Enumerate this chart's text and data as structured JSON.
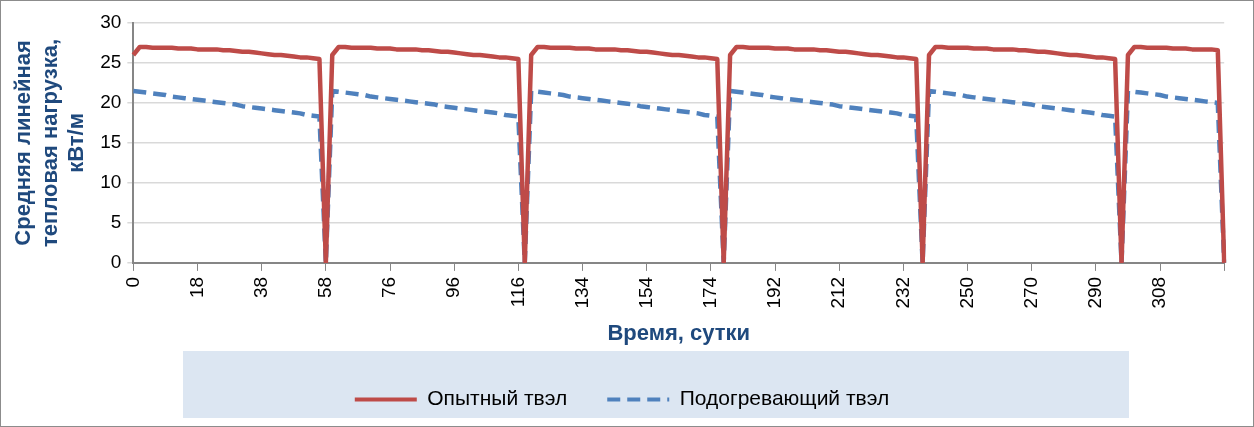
{
  "chart_data": {
    "type": "line",
    "xlabel": "Время, сутки",
    "ylabel": "Средняя линейная тепловая нагрузка, кВт/м",
    "categories": [
      "0",
      null,
      null,
      null,
      null,
      null,
      null,
      null,
      null,
      null,
      "18",
      null,
      null,
      null,
      null,
      null,
      null,
      null,
      null,
      null,
      "38",
      null,
      null,
      null,
      null,
      null,
      null,
      null,
      null,
      null,
      "58",
      null,
      null,
      null,
      null,
      null,
      null,
      null,
      null,
      null,
      "76",
      null,
      null,
      null,
      null,
      null,
      null,
      null,
      null,
      null,
      "96",
      null,
      null,
      null,
      null,
      null,
      null,
      null,
      null,
      null,
      "116",
      null,
      null,
      null,
      null,
      null,
      null,
      null,
      null,
      null,
      "134",
      null,
      null,
      null,
      null,
      null,
      null,
      null,
      null,
      null,
      "154",
      null,
      null,
      null,
      null,
      null,
      null,
      null,
      null,
      null,
      "174",
      null,
      null,
      null,
      null,
      null,
      null,
      null,
      null,
      null,
      "192",
      null,
      null,
      null,
      null,
      null,
      null,
      null,
      null,
      null,
      "212",
      null,
      null,
      null,
      null,
      null,
      null,
      null,
      null,
      null,
      "232",
      null,
      null,
      null,
      null,
      null,
      null,
      null,
      null,
      null,
      "250",
      null,
      null,
      null,
      null,
      null,
      null,
      null,
      null,
      null,
      "270",
      null,
      null,
      null,
      null,
      null,
      null,
      null,
      null,
      null,
      "290",
      null,
      null,
      null,
      null,
      null,
      null,
      null,
      null,
      null,
      "308",
      null,
      null,
      null,
      null,
      null,
      null,
      null,
      null,
      null,
      null
    ],
    "series": [
      {
        "name": "Опытный твэл",
        "color": "#be4b48",
        "line_style": "solid",
        "values": [
          26,
          27,
          27,
          26.9,
          26.9,
          26.9,
          26.9,
          26.8,
          26.8,
          26.8,
          26.7,
          26.7,
          26.7,
          26.7,
          26.6,
          26.6,
          26.5,
          26.4,
          26.4,
          26.3,
          26.2,
          26.1,
          26,
          26,
          25.9,
          25.8,
          25.7,
          25.7,
          25.6,
          25.5,
          0,
          26,
          27,
          27,
          26.9,
          26.9,
          26.9,
          26.9,
          26.8,
          26.8,
          26.8,
          26.7,
          26.7,
          26.7,
          26.7,
          26.6,
          26.6,
          26.5,
          26.4,
          26.4,
          26.3,
          26.2,
          26.1,
          26,
          26,
          25.9,
          25.8,
          25.7,
          25.7,
          25.6,
          25.5,
          0,
          26,
          27,
          27,
          26.9,
          26.9,
          26.9,
          26.9,
          26.8,
          26.8,
          26.8,
          26.7,
          26.7,
          26.7,
          26.7,
          26.6,
          26.6,
          26.5,
          26.4,
          26.4,
          26.3,
          26.2,
          26.1,
          26,
          26,
          25.9,
          25.8,
          25.7,
          25.7,
          25.6,
          25.5,
          0,
          26,
          27,
          27,
          26.9,
          26.9,
          26.9,
          26.9,
          26.8,
          26.8,
          26.8,
          26.7,
          26.7,
          26.7,
          26.7,
          26.6,
          26.6,
          26.5,
          26.4,
          26.4,
          26.3,
          26.2,
          26.1,
          26,
          26,
          25.9,
          25.8,
          25.7,
          25.7,
          25.6,
          25.5,
          0,
          26,
          27,
          27,
          26.9,
          26.9,
          26.9,
          26.9,
          26.8,
          26.8,
          26.8,
          26.7,
          26.7,
          26.7,
          26.7,
          26.6,
          26.6,
          26.5,
          26.4,
          26.4,
          26.3,
          26.2,
          26.1,
          26,
          26,
          25.9,
          25.8,
          25.7,
          25.7,
          25.6,
          25.5,
          0,
          26,
          27,
          27,
          26.9,
          26.9,
          26.9,
          26.9,
          26.8,
          26.8,
          26.8,
          26.7,
          26.7,
          26.7,
          26.7,
          26.6,
          0
        ]
      },
      {
        "name": "Подогревающий твэл",
        "color": "#4f81bd",
        "line_style": "dashed",
        "values": [
          21.5,
          21.4,
          21.3,
          21.2,
          21.1,
          21,
          20.8,
          20.7,
          20.6,
          20.5,
          20.4,
          20.3,
          20.2,
          20.1,
          20,
          19.9,
          19.8,
          19.6,
          19.5,
          19.4,
          19.3,
          19.2,
          19.1,
          19,
          18.9,
          18.8,
          18.7,
          18.5,
          18.4,
          18.3,
          0,
          21.5,
          21.4,
          21.3,
          21.2,
          21.1,
          21,
          20.8,
          20.7,
          20.6,
          20.5,
          20.4,
          20.3,
          20.2,
          20.1,
          20,
          19.9,
          19.8,
          19.6,
          19.5,
          19.4,
          19.3,
          19.2,
          19.1,
          19,
          18.9,
          18.8,
          18.7,
          18.5,
          18.4,
          18.3,
          0,
          21.5,
          21.4,
          21.3,
          21.2,
          21.1,
          21,
          20.8,
          20.7,
          20.6,
          20.5,
          20.4,
          20.3,
          20.2,
          20.1,
          20,
          19.9,
          19.8,
          19.6,
          19.5,
          19.4,
          19.3,
          19.2,
          19.1,
          19,
          18.9,
          18.8,
          18.7,
          18.5,
          18.4,
          18.3,
          0,
          21.5,
          21.4,
          21.3,
          21.2,
          21.1,
          21,
          20.8,
          20.7,
          20.6,
          20.5,
          20.4,
          20.3,
          20.2,
          20.1,
          20,
          19.9,
          19.8,
          19.6,
          19.5,
          19.4,
          19.3,
          19.2,
          19.1,
          19,
          18.9,
          18.8,
          18.7,
          18.5,
          18.4,
          18.3,
          0,
          21.5,
          21.4,
          21.3,
          21.2,
          21.1,
          21,
          20.8,
          20.7,
          20.6,
          20.5,
          20.4,
          20.3,
          20.2,
          20.1,
          20,
          19.9,
          19.8,
          19.6,
          19.5,
          19.4,
          19.3,
          19.2,
          19.1,
          19,
          18.9,
          18.8,
          18.7,
          18.5,
          18.4,
          18.3,
          0,
          21.5,
          21.4,
          21.3,
          21.2,
          21.1,
          21,
          20.8,
          20.7,
          20.6,
          20.5,
          20.4,
          20.3,
          20.2,
          20.1,
          20,
          0
        ]
      }
    ],
    "ylim": [
      0,
      30
    ],
    "yticks": [
      0,
      5,
      10,
      15,
      20,
      25,
      30
    ],
    "grid": "y",
    "legend": "bottom",
    "marker": "none"
  }
}
